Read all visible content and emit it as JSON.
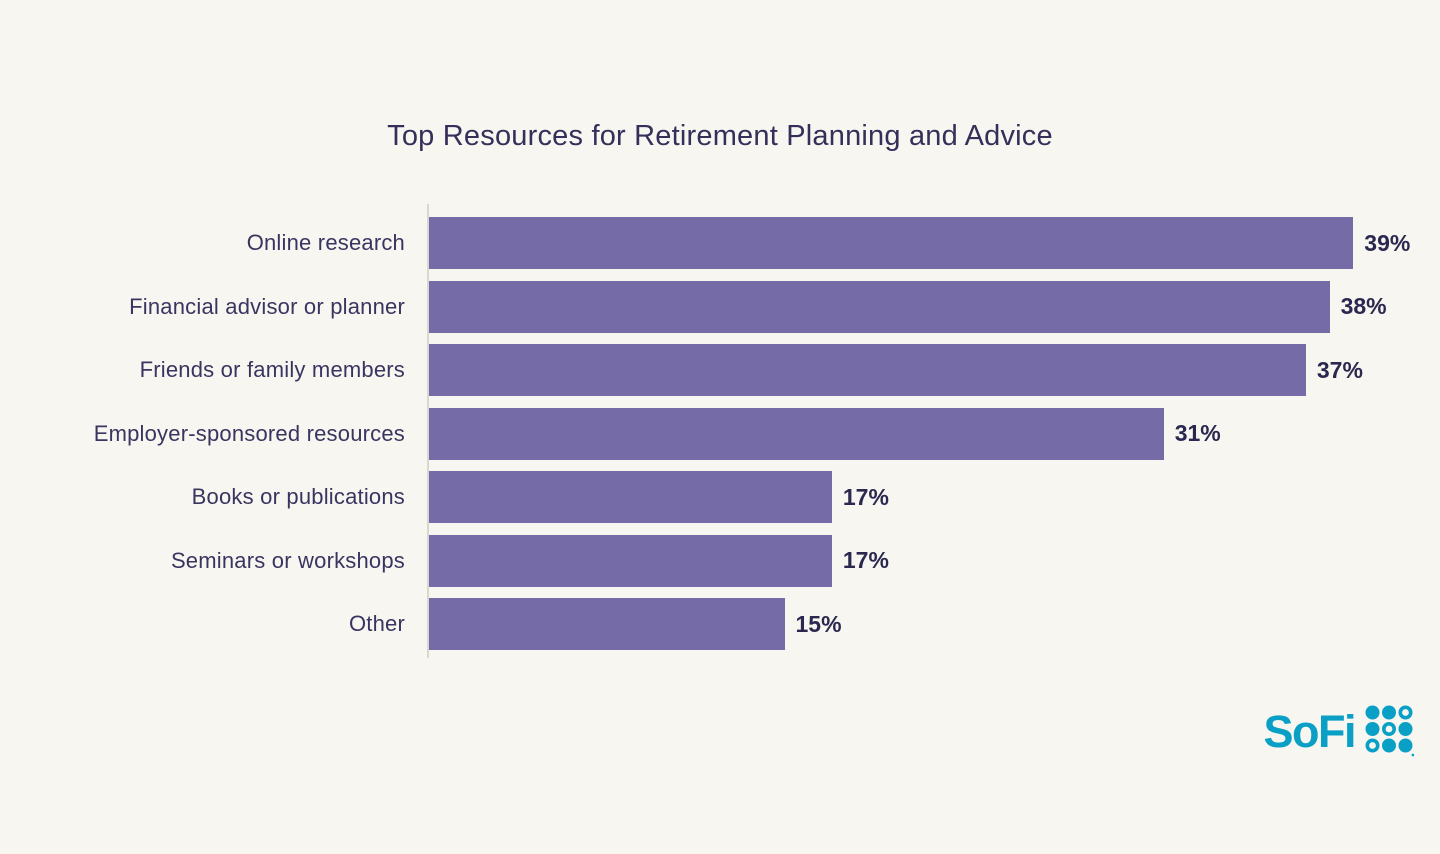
{
  "title": "Top Resources for Retirement Planning and Advice",
  "chart_data": {
    "type": "bar",
    "orientation": "horizontal",
    "title": "Top Resources for Retirement Planning and Advice",
    "categories": [
      "Online research",
      "Financial advisor or planner",
      "Friends or family members",
      "Employer-sponsored resources",
      "Books or publications",
      "Seminars or workshops",
      "Other"
    ],
    "values": [
      39,
      38,
      37,
      31,
      17,
      17,
      15
    ],
    "value_labels": [
      "39%",
      "38%",
      "37%",
      "31%",
      "17%",
      "17%",
      "15%"
    ],
    "xlabel": "",
    "ylabel": "",
    "xlim": [
      0,
      40
    ],
    "grid": false,
    "legend": false,
    "bar_color": "#756CA7",
    "value_label_position": "outside-end"
  },
  "branding": {
    "logo_text": "SoFi",
    "logo_mark": "dot-grid-icon",
    "logo_color": "#0AA0C5"
  },
  "colors": {
    "background": "#F8F6F1",
    "title_text": "#35305A",
    "label_text": "#3A3560",
    "value_text": "#2B2850",
    "axis_line": "#DAD7CF"
  }
}
